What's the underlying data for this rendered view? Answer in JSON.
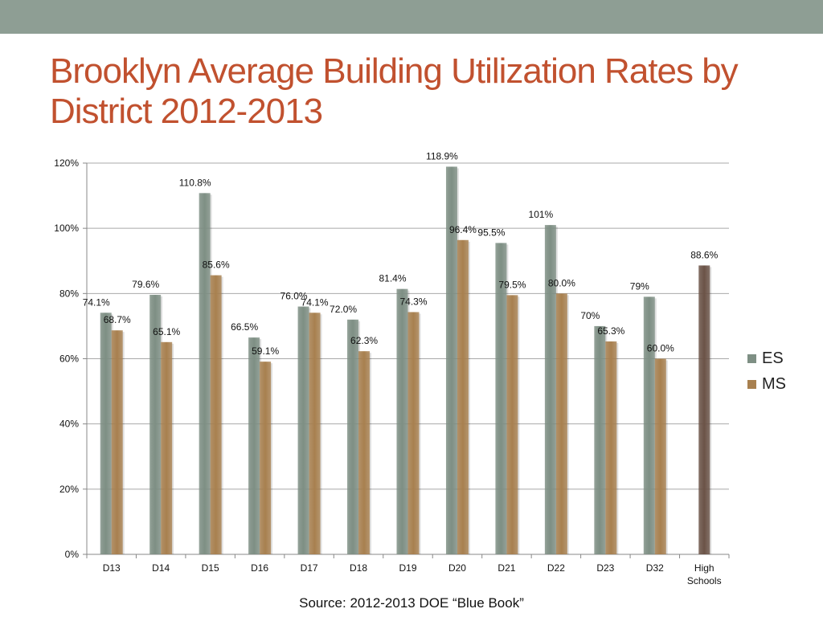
{
  "slide": {
    "title_line1": "Brooklyn Average Building Utilization Rates by",
    "title_line2": "District 2012-2013",
    "source": "Source: 2012-2013 DOE “Blue Book”"
  },
  "colors": {
    "band": "#8e9e94",
    "title": "#c1512f",
    "es": "#7e8f84",
    "ms": "#a8804f",
    "hs": "#6b5347"
  },
  "chart_data": {
    "type": "bar",
    "categories": [
      "D13",
      "D14",
      "D15",
      "D16",
      "D17",
      "D18",
      "D19",
      "D20",
      "D21",
      "D22",
      "D23",
      "D32",
      "High Schools"
    ],
    "y_tick_labels": [
      "0%",
      "20%",
      "40%",
      "60%",
      "80%",
      "100%",
      "120%"
    ],
    "ylim": [
      0,
      120
    ],
    "grid": true,
    "legend_position": "right",
    "series": [
      {
        "name": "ES",
        "values": [
          74.1,
          79.6,
          110.8,
          66.5,
          76.0,
          72.0,
          81.4,
          118.9,
          95.5,
          101,
          70,
          79,
          null
        ],
        "labels": [
          "74.1%",
          "79.6%",
          "110.8%",
          "66.5%",
          "76.0%",
          "72.0%",
          "81.4%",
          "118.9%",
          "95.5%",
          "101%",
          "70%",
          "79%",
          ""
        ]
      },
      {
        "name": "MS",
        "values": [
          68.7,
          65.1,
          85.6,
          59.1,
          74.1,
          62.3,
          74.3,
          96.4,
          79.5,
          80.0,
          65.3,
          60.0,
          null
        ],
        "labels": [
          "68.7%",
          "65.1%",
          "85.6%",
          "59.1%",
          "74.1%",
          "62.3%",
          "74.3%",
          "96.4%",
          "79.5%",
          "80.0%",
          "65.3%",
          "60.0%",
          ""
        ]
      },
      {
        "values": [
          null,
          null,
          null,
          null,
          null,
          null,
          null,
          null,
          null,
          null,
          null,
          null,
          88.6
        ],
        "labels": [
          "",
          "",
          "",
          "",
          "",
          "",
          "",
          "",
          "",
          "",
          "",
          "",
          "88.6%"
        ]
      }
    ]
  }
}
